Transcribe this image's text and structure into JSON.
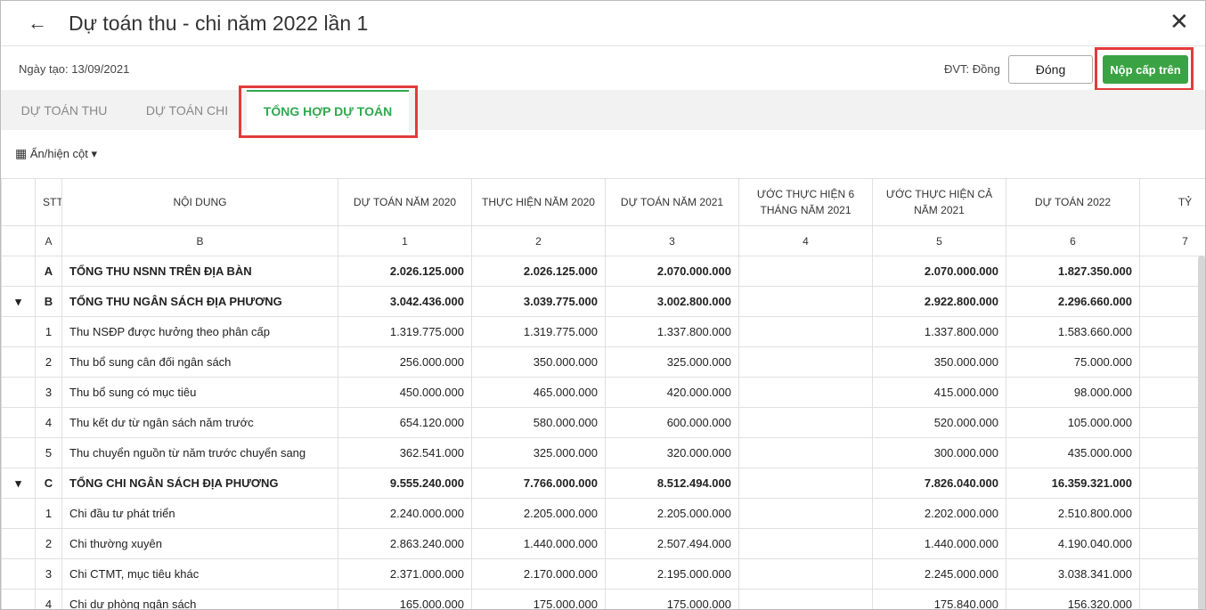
{
  "header": {
    "title": "Dự toán thu - chi năm 2022 lần 1"
  },
  "toolbar": {
    "created": "Ngày tạo: 13/09/2021",
    "unit": "ĐVT: Đồng",
    "close_button": "Đóng",
    "submit_button": "Nộp cấp trên"
  },
  "tabs": {
    "items": [
      "DỰ TOÁN THU",
      "DỰ TOÁN CHI",
      "TỔNG HỢP DỰ TOÁN"
    ],
    "active": 2
  },
  "column_toggle": "Ẩn/hiện cột",
  "table": {
    "headers": [
      "STT",
      "NỘI DUNG",
      "DỰ TOÁN NĂM 2020",
      "THỰC HIỆN NĂM 2020",
      "DỰ TOÁN NĂM 2021",
      "ƯỚC THỰC HIỆN 6 THÁNG NĂM 2021",
      "ƯỚC THỰC HIỆN CẢ NĂM 2021",
      "DỰ TOÁN 2022",
      "TỶ"
    ],
    "codes": [
      "A",
      "B",
      "1",
      "2",
      "3",
      "4",
      "5",
      "6",
      "7"
    ],
    "rows": [
      {
        "bold": true,
        "expander": false,
        "cells": [
          "A",
          "TỔNG THU NSNN TRÊN ĐỊA BÀN",
          "2.026.125.000",
          "2.026.125.000",
          "2.070.000.000",
          null,
          "2.070.000.000",
          "1.827.350.000",
          null
        ]
      },
      {
        "bold": true,
        "expander": true,
        "cells": [
          "B",
          "TỔNG THU NGÂN SÁCH ĐỊA PHƯƠNG",
          "3.042.436.000",
          "3.039.775.000",
          "3.002.800.000",
          null,
          "2.922.800.000",
          "2.296.660.000",
          null
        ]
      },
      {
        "bold": false,
        "expander": false,
        "cells": [
          "1",
          "Thu NSĐP được hưởng theo phân cấp",
          "1.319.775.000",
          "1.319.775.000",
          "1.337.800.000",
          null,
          "1.337.800.000",
          "1.583.660.000",
          null
        ]
      },
      {
        "bold": false,
        "expander": false,
        "cells": [
          "2",
          "Thu bổ sung cân đối ngân sách",
          "256.000.000",
          "350.000.000",
          "325.000.000",
          null,
          "350.000.000",
          "75.000.000",
          null
        ]
      },
      {
        "bold": false,
        "expander": false,
        "cells": [
          "3",
          "Thu bổ sung có mục tiêu",
          "450.000.000",
          "465.000.000",
          "420.000.000",
          null,
          "415.000.000",
          "98.000.000",
          null
        ]
      },
      {
        "bold": false,
        "expander": false,
        "cells": [
          "4",
          "Thu kết dư từ ngân sách năm trước",
          "654.120.000",
          "580.000.000",
          "600.000.000",
          null,
          "520.000.000",
          "105.000.000",
          null
        ]
      },
      {
        "bold": false,
        "expander": false,
        "cells": [
          "5",
          "Thu chuyển nguồn từ năm trước chuyển sang",
          "362.541.000",
          "325.000.000",
          "320.000.000",
          null,
          "300.000.000",
          "435.000.000",
          null
        ]
      },
      {
        "bold": true,
        "expander": true,
        "cells": [
          "C",
          "TỔNG CHI NGÂN SÁCH ĐỊA PHƯƠNG",
          "9.555.240.000",
          "7.766.000.000",
          "8.512.494.000",
          null,
          "7.826.040.000",
          "16.359.321.000",
          null
        ]
      },
      {
        "bold": false,
        "expander": false,
        "cells": [
          "1",
          "Chi đầu tư phát triển",
          "2.240.000.000",
          "2.205.000.000",
          "2.205.000.000",
          null,
          "2.202.000.000",
          "2.510.800.000",
          null
        ]
      },
      {
        "bold": false,
        "expander": false,
        "cells": [
          "2",
          "Chi thường xuyên",
          "2.863.240.000",
          "1.440.000.000",
          "2.507.494.000",
          null,
          "1.440.000.000",
          "4.190.040.000",
          null
        ]
      },
      {
        "bold": false,
        "expander": false,
        "cells": [
          "3",
          "Chi CTMT, mục tiêu khác",
          "2.371.000.000",
          "2.170.000.000",
          "2.195.000.000",
          null,
          "2.245.000.000",
          "3.038.341.000",
          null
        ]
      },
      {
        "bold": false,
        "expander": false,
        "cells": [
          "4",
          "Chi dự phòng ngân sách",
          "165.000.000",
          "175.000.000",
          "175.000.000",
          null,
          "175.840.000",
          "156.320.000",
          null
        ]
      }
    ]
  }
}
